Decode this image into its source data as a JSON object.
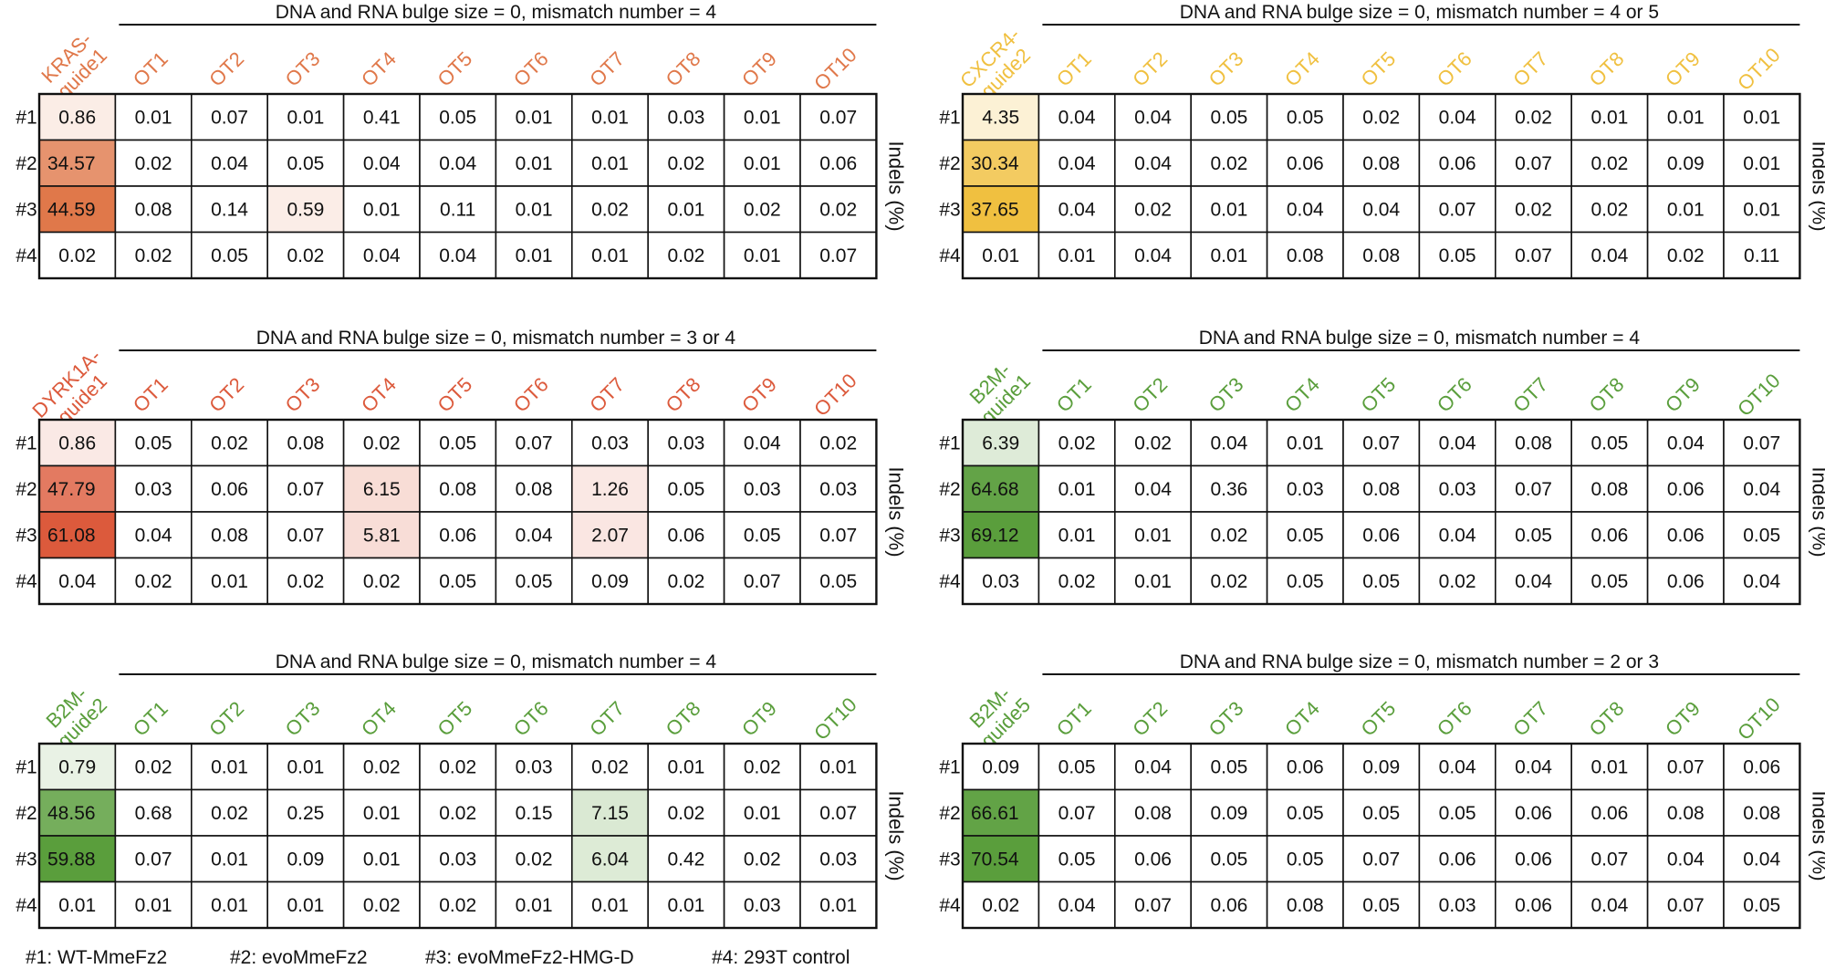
{
  "chart_data": [
    {
      "type": "heatmap",
      "guide": "KRAS-guide1",
      "guide_lines": [
        "KRAS-",
        "guide1"
      ],
      "color": "#e0784a",
      "title": "DNA and RNA bulge size = 0, mismatch number  = 4",
      "columns": [
        "",
        "OT1",
        "OT2",
        "OT3",
        "OT4",
        "OT5",
        "OT6",
        "OT7",
        "OT8",
        "OT9",
        "OT10"
      ],
      "rows": [
        "#1",
        "#2",
        "#3",
        "#4"
      ],
      "values": [
        [
          "0.86",
          "0.01",
          "0.07",
          "0.01",
          "0.41",
          "0.05",
          "0.01",
          "0.01",
          "0.03",
          "0.01",
          "0.07"
        ],
        [
          "34.57",
          "0.02",
          "0.04",
          "0.05",
          "0.04",
          "0.04",
          "0.01",
          "0.01",
          "0.02",
          "0.01",
          "0.06"
        ],
        [
          "44.59",
          "0.08",
          "0.14",
          "0.59",
          "0.01",
          "0.11",
          "0.01",
          "0.02",
          "0.01",
          "0.02",
          "0.02"
        ],
        [
          "0.02",
          "0.02",
          "0.05",
          "0.02",
          "0.04",
          "0.04",
          "0.01",
          "0.01",
          "0.02",
          "0.01",
          "0.07"
        ]
      ],
      "ylabel": "Indels (%)"
    },
    {
      "type": "heatmap",
      "guide": "CXCR4-guide2",
      "guide_lines": [
        "CXCR4-",
        "guide2"
      ],
      "color": "#f0c040",
      "title": "DNA and RNA bulge size = 0, mismatch number  = 4 or 5",
      "columns": [
        "",
        "OT1",
        "OT2",
        "OT3",
        "OT4",
        "OT5",
        "OT6",
        "OT7",
        "OT8",
        "OT9",
        "OT10"
      ],
      "rows": [
        "#1",
        "#2",
        "#3",
        "#4"
      ],
      "values": [
        [
          "4.35",
          "0.04",
          "0.04",
          "0.05",
          "0.05",
          "0.02",
          "0.04",
          "0.02",
          "0.01",
          "0.01",
          "0.01"
        ],
        [
          "30.34",
          "0.04",
          "0.04",
          "0.02",
          "0.06",
          "0.08",
          "0.06",
          "0.07",
          "0.02",
          "0.09",
          "0.01"
        ],
        [
          "37.65",
          "0.04",
          "0.02",
          "0.01",
          "0.04",
          "0.04",
          "0.07",
          "0.02",
          "0.02",
          "0.01",
          "0.01"
        ],
        [
          "0.01",
          "0.01",
          "0.04",
          "0.01",
          "0.08",
          "0.08",
          "0.05",
          "0.07",
          "0.04",
          "0.02",
          "0.11"
        ]
      ],
      "ylabel": "Indels (%)"
    },
    {
      "type": "heatmap",
      "guide": "DYRK1A-guide1",
      "guide_lines": [
        "DYRK1A-",
        "guide1"
      ],
      "color": "#dc5a3c",
      "title": "DNA and RNA bulge size = 0, mismatch number  = 3 or 4",
      "columns": [
        "",
        "OT1",
        "OT2",
        "OT3",
        "OT4",
        "OT5",
        "OT6",
        "OT7",
        "OT8",
        "OT9",
        "OT10"
      ],
      "rows": [
        "#1",
        "#2",
        "#3",
        "#4"
      ],
      "values": [
        [
          "0.86",
          "0.05",
          "0.02",
          "0.08",
          "0.02",
          "0.05",
          "0.07",
          "0.03",
          "0.03",
          "0.04",
          "0.02"
        ],
        [
          "47.79",
          "0.03",
          "0.06",
          "0.07",
          "6.15",
          "0.08",
          "0.08",
          "1.26",
          "0.05",
          "0.03",
          "0.03"
        ],
        [
          "61.08",
          "0.04",
          "0.08",
          "0.07",
          "5.81",
          "0.06",
          "0.04",
          "2.07",
          "0.06",
          "0.05",
          "0.07"
        ],
        [
          "0.04",
          "0.02",
          "0.01",
          "0.02",
          "0.02",
          "0.05",
          "0.05",
          "0.09",
          "0.02",
          "0.07",
          "0.05"
        ]
      ],
      "ylabel": "Indels (%)"
    },
    {
      "type": "heatmap",
      "guide": "B2M-guide1",
      "guide_lines": [
        "B2M-",
        "guide1"
      ],
      "color": "#5a9e3c",
      "title": "DNA and RNA bulge size = 0, mismatch number  = 4",
      "columns": [
        "",
        "OT1",
        "OT2",
        "OT3",
        "OT4",
        "OT5",
        "OT6",
        "OT7",
        "OT8",
        "OT9",
        "OT10"
      ],
      "rows": [
        "#1",
        "#2",
        "#3",
        "#4"
      ],
      "values": [
        [
          "6.39",
          "0.02",
          "0.02",
          "0.04",
          "0.01",
          "0.07",
          "0.04",
          "0.08",
          "0.05",
          "0.04",
          "0.07"
        ],
        [
          "64.68",
          "0.01",
          "0.04",
          "0.36",
          "0.03",
          "0.08",
          "0.03",
          "0.07",
          "0.08",
          "0.06",
          "0.04"
        ],
        [
          "69.12",
          "0.01",
          "0.01",
          "0.02",
          "0.05",
          "0.06",
          "0.04",
          "0.05",
          "0.06",
          "0.06",
          "0.05"
        ],
        [
          "0.03",
          "0.02",
          "0.01",
          "0.02",
          "0.05",
          "0.05",
          "0.02",
          "0.04",
          "0.05",
          "0.06",
          "0.04"
        ]
      ],
      "ylabel": "Indels (%)"
    },
    {
      "type": "heatmap",
      "guide": "B2M-guide2",
      "guide_lines": [
        "B2M-",
        "guide2"
      ],
      "color": "#5a9e3c",
      "title": "DNA and RNA bulge size = 0, mismatch number  = 4",
      "columns": [
        "",
        "OT1",
        "OT2",
        "OT3",
        "OT4",
        "OT5",
        "OT6",
        "OT7",
        "OT8",
        "OT9",
        "OT10"
      ],
      "rows": [
        "#1",
        "#2",
        "#3",
        "#4"
      ],
      "values": [
        [
          "0.79",
          "0.02",
          "0.01",
          "0.01",
          "0.02",
          "0.02",
          "0.03",
          "0.02",
          "0.01",
          "0.02",
          "0.01"
        ],
        [
          "48.56",
          "0.68",
          "0.02",
          "0.25",
          "0.01",
          "0.02",
          "0.15",
          "7.15",
          "0.02",
          "0.01",
          "0.07"
        ],
        [
          "59.88",
          "0.07",
          "0.01",
          "0.09",
          "0.01",
          "0.03",
          "0.02",
          "6.04",
          "0.42",
          "0.02",
          "0.03"
        ],
        [
          "0.01",
          "0.01",
          "0.01",
          "0.01",
          "0.02",
          "0.02",
          "0.01",
          "0.01",
          "0.01",
          "0.03",
          "0.01"
        ]
      ],
      "ylabel": "Indels (%)"
    },
    {
      "type": "heatmap",
      "guide": "B2M-guide5",
      "guide_lines": [
        "B2M-",
        "guide5"
      ],
      "color": "#5a9e3c",
      "title": "DNA and RNA bulge size = 0, mismatch number  = 2 or 3",
      "columns": [
        "",
        "OT1",
        "OT2",
        "OT3",
        "OT4",
        "OT5",
        "OT6",
        "OT7",
        "OT8",
        "OT9",
        "OT10"
      ],
      "rows": [
        "#1",
        "#2",
        "#3",
        "#4"
      ],
      "values": [
        [
          "0.09",
          "0.05",
          "0.04",
          "0.05",
          "0.06",
          "0.09",
          "0.04",
          "0.04",
          "0.01",
          "0.07",
          "0.06"
        ],
        [
          "66.61",
          "0.07",
          "0.08",
          "0.09",
          "0.05",
          "0.05",
          "0.05",
          "0.06",
          "0.06",
          "0.08",
          "0.08"
        ],
        [
          "70.54",
          "0.05",
          "0.06",
          "0.05",
          "0.05",
          "0.07",
          "0.06",
          "0.06",
          "0.07",
          "0.04",
          "0.04"
        ],
        [
          "0.02",
          "0.04",
          "0.07",
          "0.06",
          "0.08",
          "0.05",
          "0.03",
          "0.06",
          "0.04",
          "0.07",
          "0.05"
        ]
      ],
      "ylabel": "Indels (%)"
    }
  ],
  "legend": {
    "items": [
      "#1: WT-MmeFz2",
      "#2: evoMmeFz2",
      "#3: evoMmeFz2-HMG-D",
      "#4: 293T control"
    ]
  }
}
